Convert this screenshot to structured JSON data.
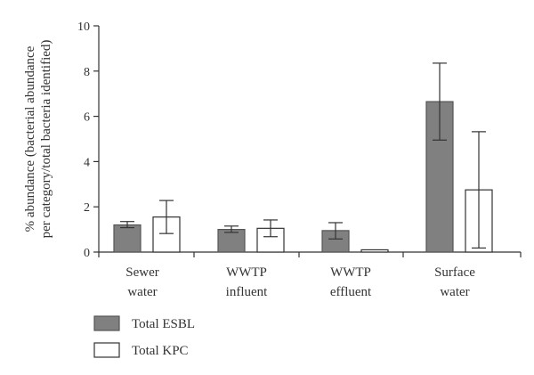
{
  "chart_data": {
    "type": "bar",
    "categories": [
      [
        "Sewer",
        "water"
      ],
      [
        "WWTP",
        "influent"
      ],
      [
        "WWTP",
        "effluent"
      ],
      [
        "Surface",
        "water"
      ]
    ],
    "ylabel": [
      "% abundance (bacterial abundance",
      "per category/total bacteria identified)"
    ],
    "ylim": [
      0,
      10
    ],
    "yticks": [
      0,
      2,
      4,
      6,
      8,
      10
    ],
    "grid": false,
    "legend_position": "bottom-left",
    "series": [
      {
        "name": "Total ESBL",
        "values": [
          1.2,
          1.0,
          0.95,
          6.65
        ],
        "err_low": [
          1.08,
          0.87,
          0.58,
          4.95
        ],
        "err_high": [
          1.35,
          1.15,
          1.3,
          8.35
        ],
        "fill": "#808080",
        "stroke": "#555555"
      },
      {
        "name": "Total KPC",
        "values": [
          1.55,
          1.05,
          0.1,
          2.75
        ],
        "err_low": [
          0.82,
          0.68,
          0.1,
          0.18
        ],
        "err_high": [
          2.28,
          1.42,
          0.1,
          5.32
        ],
        "fill": "#ffffff",
        "stroke": "#333333"
      }
    ]
  }
}
